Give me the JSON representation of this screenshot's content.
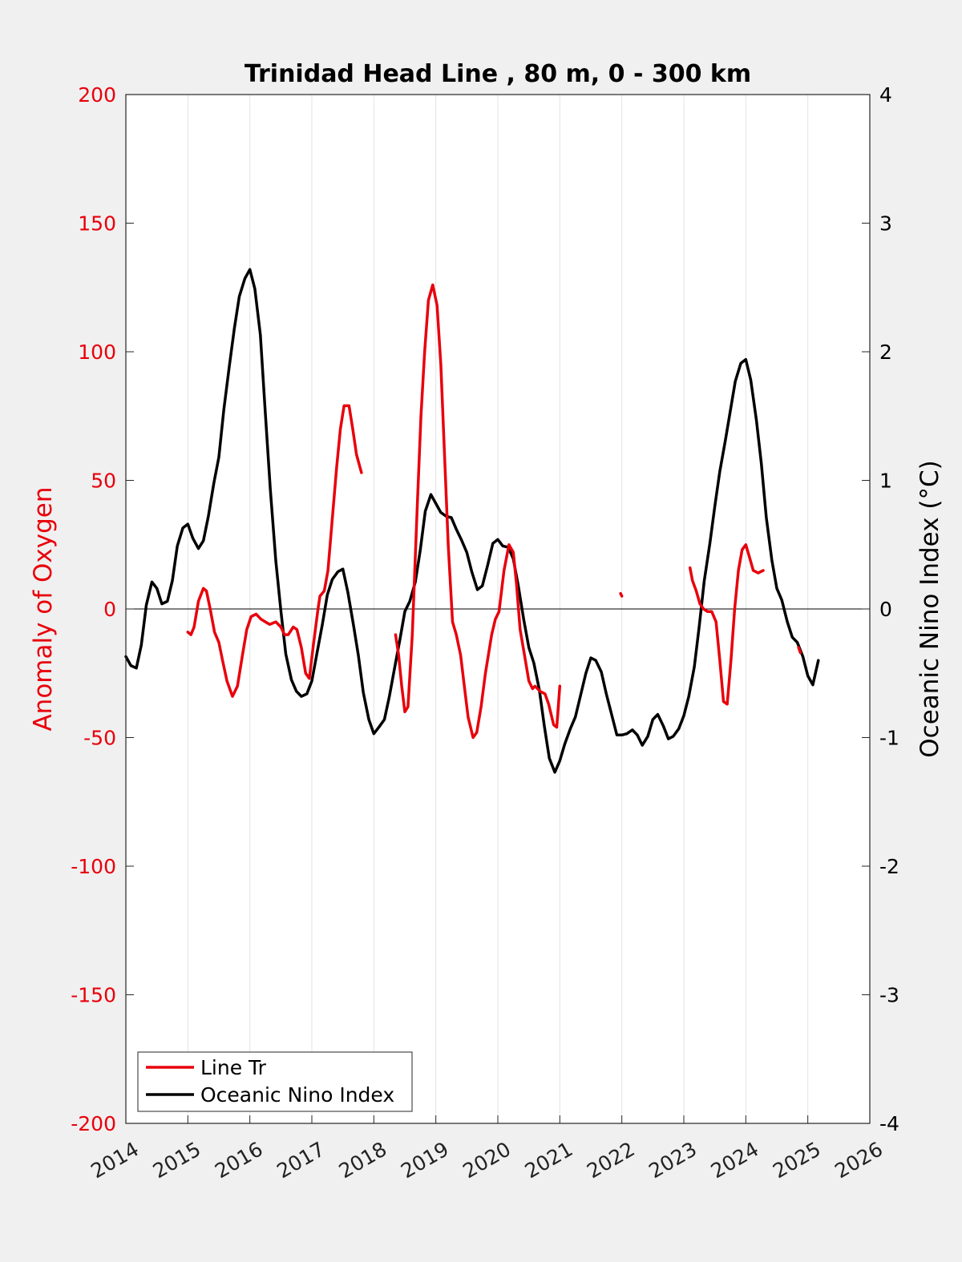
{
  "chart_data": {
    "type": "line",
    "title": "Trinidad Head Line , 80 m, 0 - 300 km",
    "ylabel_left": "Anomaly of Oxygen",
    "ylabel_right": "Oceanic Nino Index (°C)",
    "xlim": [
      2014,
      2026
    ],
    "ylim_left": [
      -200,
      200
    ],
    "ylim_right": [
      -4,
      4
    ],
    "x_ticks": [
      "2014",
      "2015",
      "2016",
      "2017",
      "2018",
      "2019",
      "2020",
      "2021",
      "2022",
      "2023",
      "2024",
      "2025",
      "2026"
    ],
    "y_ticks_left": [
      "200",
      "150",
      "100",
      "50",
      "0",
      "-50",
      "-100",
      "-150",
      "-200"
    ],
    "y_ticks_right": [
      "4",
      "3",
      "2",
      "1",
      "0",
      "-1",
      "-2",
      "-3",
      "-4"
    ],
    "grid": "vertical",
    "legend_position": "bottom-left",
    "colors": {
      "line_tr": "#e8000b",
      "oni": "#000000",
      "background": "#f0f0f0"
    },
    "series": [
      {
        "name": "Line Tr",
        "axis": "left",
        "color": "#e8000b",
        "segments": [
          [
            [
              2015.0,
              -9
            ],
            [
              2015.05,
              -10
            ],
            [
              2015.1,
              -7
            ],
            [
              2015.17,
              3
            ],
            [
              2015.25,
              8
            ],
            [
              2015.3,
              7
            ],
            [
              2015.36,
              0
            ],
            [
              2015.43,
              -9
            ],
            [
              2015.5,
              -13
            ],
            [
              2015.56,
              -20
            ],
            [
              2015.63,
              -28
            ],
            [
              2015.72,
              -34
            ],
            [
              2015.8,
              -30
            ],
            [
              2015.88,
              -18
            ],
            [
              2015.95,
              -8
            ],
            [
              2016.02,
              -3
            ],
            [
              2016.1,
              -2
            ],
            [
              2016.18,
              -4
            ],
            [
              2016.25,
              -5
            ],
            [
              2016.32,
              -6
            ],
            [
              2016.42,
              -5
            ],
            [
              2016.5,
              -7
            ],
            [
              2016.56,
              -10
            ],
            [
              2016.62,
              -10
            ],
            [
              2016.7,
              -7
            ],
            [
              2016.76,
              -8
            ],
            [
              2016.83,
              -15
            ],
            [
              2016.9,
              -25
            ],
            [
              2016.96,
              -27
            ],
            [
              2017.02,
              -15
            ],
            [
              2017.1,
              0
            ],
            [
              2017.13,
              5
            ],
            [
              2017.2,
              7
            ],
            [
              2017.26,
              15
            ],
            [
              2017.33,
              35
            ],
            [
              2017.4,
              55
            ],
            [
              2017.46,
              70
            ],
            [
              2017.52,
              79
            ],
            [
              2017.6,
              79
            ],
            [
              2017.66,
              70
            ],
            [
              2017.72,
              60
            ],
            [
              2017.8,
              53
            ]
          ],
          [
            [
              2018.35,
              -10
            ],
            [
              2018.4,
              -18
            ],
            [
              2018.45,
              -30
            ],
            [
              2018.5,
              -40
            ],
            [
              2018.55,
              -38
            ],
            [
              2018.62,
              -10
            ],
            [
              2018.7,
              40
            ],
            [
              2018.76,
              75
            ],
            [
              2018.82,
              100
            ],
            [
              2018.88,
              120
            ],
            [
              2018.95,
              126
            ],
            [
              2019.02,
              118
            ],
            [
              2019.08,
              95
            ],
            [
              2019.14,
              60
            ],
            [
              2019.2,
              25
            ],
            [
              2019.27,
              -5
            ],
            [
              2019.33,
              -10
            ],
            [
              2019.4,
              -18
            ],
            [
              2019.46,
              -30
            ],
            [
              2019.52,
              -42
            ],
            [
              2019.6,
              -50
            ],
            [
              2019.66,
              -48
            ],
            [
              2019.73,
              -38
            ],
            [
              2019.8,
              -25
            ],
            [
              2019.9,
              -10
            ],
            [
              2019.96,
              -4
            ],
            [
              2020.02,
              -1
            ],
            [
              2020.1,
              15
            ],
            [
              2020.18,
              25
            ],
            [
              2020.25,
              22
            ],
            [
              2020.3,
              10
            ],
            [
              2020.36,
              -8
            ],
            [
              2020.43,
              -18
            ],
            [
              2020.5,
              -28
            ],
            [
              2020.56,
              -31
            ],
            [
              2020.6,
              -30
            ],
            [
              2020.68,
              -32
            ],
            [
              2020.76,
              -33
            ],
            [
              2020.82,
              -37
            ],
            [
              2020.9,
              -45
            ],
            [
              2020.95,
              -46
            ],
            [
              2021.0,
              -30
            ]
          ],
          [
            [
              2021.98,
              6
            ],
            [
              2022.0,
              5
            ]
          ],
          [
            [
              2023.1,
              16
            ],
            [
              2023.14,
              11
            ],
            [
              2023.2,
              7
            ],
            [
              2023.26,
              2
            ],
            [
              2023.32,
              0
            ],
            [
              2023.38,
              -1
            ],
            [
              2023.45,
              -1
            ],
            [
              2023.52,
              -5
            ],
            [
              2023.58,
              -20
            ],
            [
              2023.64,
              -36
            ],
            [
              2023.7,
              -37
            ],
            [
              2023.76,
              -20
            ],
            [
              2023.82,
              0
            ],
            [
              2023.88,
              15
            ],
            [
              2023.94,
              23
            ],
            [
              2024.0,
              25
            ],
            [
              2024.06,
              20
            ],
            [
              2024.12,
              15
            ],
            [
              2024.2,
              14
            ],
            [
              2024.28,
              15
            ]
          ],
          [
            [
              2024.85,
              -15
            ],
            [
              2024.88,
              -17
            ]
          ]
        ]
      },
      {
        "name": "Oceanic Nino Index",
        "axis": "right",
        "color": "#000000",
        "points": [
          [
            2014.0,
            -0.37
          ],
          [
            2014.08,
            -0.44
          ],
          [
            2014.17,
            -0.46
          ],
          [
            2014.25,
            -0.28
          ],
          [
            2014.33,
            0.03
          ],
          [
            2014.42,
            0.21
          ],
          [
            2014.5,
            0.16
          ],
          [
            2014.58,
            0.04
          ],
          [
            2014.67,
            0.06
          ],
          [
            2014.75,
            0.22
          ],
          [
            2014.83,
            0.49
          ],
          [
            2014.92,
            0.63
          ],
          [
            2015.0,
            0.66
          ],
          [
            2015.08,
            0.55
          ],
          [
            2015.17,
            0.47
          ],
          [
            2015.25,
            0.53
          ],
          [
            2015.33,
            0.72
          ],
          [
            2015.42,
            0.98
          ],
          [
            2015.5,
            1.18
          ],
          [
            2015.58,
            1.55
          ],
          [
            2015.67,
            1.89
          ],
          [
            2015.75,
            2.18
          ],
          [
            2015.83,
            2.43
          ],
          [
            2015.92,
            2.57
          ],
          [
            2016.0,
            2.64
          ],
          [
            2016.08,
            2.49
          ],
          [
            2016.17,
            2.13
          ],
          [
            2016.25,
            1.52
          ],
          [
            2016.33,
            0.93
          ],
          [
            2016.42,
            0.37
          ],
          [
            2016.5,
            -0.01
          ],
          [
            2016.58,
            -0.35
          ],
          [
            2016.67,
            -0.55
          ],
          [
            2016.75,
            -0.64
          ],
          [
            2016.83,
            -0.68
          ],
          [
            2016.92,
            -0.66
          ],
          [
            2017.0,
            -0.56
          ],
          [
            2017.08,
            -0.35
          ],
          [
            2017.17,
            -0.12
          ],
          [
            2017.25,
            0.11
          ],
          [
            2017.33,
            0.23
          ],
          [
            2017.42,
            0.29
          ],
          [
            2017.5,
            0.31
          ],
          [
            2017.58,
            0.13
          ],
          [
            2017.67,
            -0.12
          ],
          [
            2017.75,
            -0.36
          ],
          [
            2017.83,
            -0.65
          ],
          [
            2017.92,
            -0.86
          ],
          [
            2018.0,
            -0.97
          ],
          [
            2018.08,
            -0.92
          ],
          [
            2018.17,
            -0.86
          ],
          [
            2018.25,
            -0.68
          ],
          [
            2018.33,
            -0.47
          ],
          [
            2018.42,
            -0.24
          ],
          [
            2018.5,
            -0.02
          ],
          [
            2018.58,
            0.06
          ],
          [
            2018.67,
            0.21
          ],
          [
            2018.75,
            0.46
          ],
          [
            2018.83,
            0.76
          ],
          [
            2018.92,
            0.89
          ],
          [
            2019.0,
            0.82
          ],
          [
            2019.08,
            0.75
          ],
          [
            2019.17,
            0.72
          ],
          [
            2019.25,
            0.71
          ],
          [
            2019.33,
            0.62
          ],
          [
            2019.42,
            0.53
          ],
          [
            2019.5,
            0.44
          ],
          [
            2019.58,
            0.29
          ],
          [
            2019.67,
            0.15
          ],
          [
            2019.75,
            0.18
          ],
          [
            2019.83,
            0.33
          ],
          [
            2019.92,
            0.51
          ],
          [
            2020.0,
            0.54
          ],
          [
            2020.08,
            0.49
          ],
          [
            2020.17,
            0.48
          ],
          [
            2020.25,
            0.39
          ],
          [
            2020.33,
            0.18
          ],
          [
            2020.42,
            -0.09
          ],
          [
            2020.5,
            -0.3
          ],
          [
            2020.58,
            -0.42
          ],
          [
            2020.67,
            -0.63
          ],
          [
            2020.75,
            -0.91
          ],
          [
            2020.83,
            -1.16
          ],
          [
            2020.92,
            -1.27
          ],
          [
            2021.0,
            -1.18
          ],
          [
            2021.08,
            -1.05
          ],
          [
            2021.17,
            -0.93
          ],
          [
            2021.25,
            -0.84
          ],
          [
            2021.33,
            -0.68
          ],
          [
            2021.42,
            -0.5
          ],
          [
            2021.5,
            -0.38
          ],
          [
            2021.58,
            -0.4
          ],
          [
            2021.67,
            -0.49
          ],
          [
            2021.75,
            -0.66
          ],
          [
            2021.83,
            -0.81
          ],
          [
            2021.92,
            -0.98
          ],
          [
            2022.0,
            -0.98
          ],
          [
            2022.08,
            -0.97
          ],
          [
            2022.17,
            -0.94
          ],
          [
            2022.25,
            -0.98
          ],
          [
            2022.33,
            -1.06
          ],
          [
            2022.42,
            -0.99
          ],
          [
            2022.5,
            -0.86
          ],
          [
            2022.58,
            -0.82
          ],
          [
            2022.67,
            -0.91
          ],
          [
            2022.75,
            -1.01
          ],
          [
            2022.83,
            -0.99
          ],
          [
            2022.92,
            -0.93
          ],
          [
            2023.0,
            -0.83
          ],
          [
            2023.08,
            -0.68
          ],
          [
            2023.17,
            -0.45
          ],
          [
            2023.25,
            -0.13
          ],
          [
            2023.33,
            0.22
          ],
          [
            2023.42,
            0.51
          ],
          [
            2023.5,
            0.8
          ],
          [
            2023.58,
            1.07
          ],
          [
            2023.67,
            1.31
          ],
          [
            2023.75,
            1.54
          ],
          [
            2023.83,
            1.77
          ],
          [
            2023.92,
            1.91
          ],
          [
            2024.0,
            1.94
          ],
          [
            2024.08,
            1.78
          ],
          [
            2024.17,
            1.47
          ],
          [
            2024.25,
            1.13
          ],
          [
            2024.33,
            0.71
          ],
          [
            2024.42,
            0.38
          ],
          [
            2024.5,
            0.16
          ],
          [
            2024.58,
            0.07
          ],
          [
            2024.67,
            -0.1
          ],
          [
            2024.75,
            -0.22
          ],
          [
            2024.83,
            -0.26
          ],
          [
            2024.92,
            -0.37
          ],
          [
            2025.0,
            -0.52
          ],
          [
            2025.08,
            -0.59
          ],
          [
            2025.17,
            -0.4
          ]
        ]
      }
    ]
  }
}
